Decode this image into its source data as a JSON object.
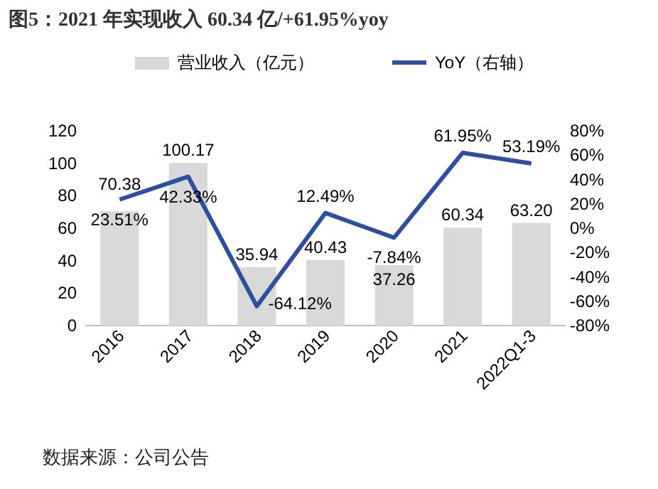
{
  "chart_data": {
    "type": "bar",
    "title": "图5：2021 年实现收入 60.34 亿/+61.95%yoy",
    "categories": [
      "2016",
      "2017",
      "2018",
      "2019",
      "2020",
      "2021",
      "2022Q1-3"
    ],
    "series": [
      {
        "name": "营业收入（亿元）",
        "color": "#d9d9d9",
        "values": [
          70.38,
          100.17,
          35.94,
          40.43,
          37.26,
          60.34,
          63.2
        ],
        "value_labels": [
          "70.38",
          "100.17",
          "35.94",
          "40.43",
          "37.26",
          "60.34",
          "63.20"
        ]
      },
      {
        "name": "YoY（右轴）",
        "type": "line",
        "axis": "y2",
        "color": "#2e4f9e",
        "values": [
          23.51,
          42.33,
          -64.12,
          12.49,
          -7.84,
          61.95,
          53.19
        ],
        "value_labels": [
          "23.51%",
          "42.33%",
          "-64.12%",
          "12.49%",
          "-7.84%",
          "61.95%",
          "53.19%"
        ]
      }
    ],
    "ylim": [
      0,
      120
    ],
    "yticks": [
      0,
      20,
      40,
      60,
      80,
      100,
      120
    ],
    "y2lim": [
      -80,
      80
    ],
    "y2ticks": [
      {
        "value": -80,
        "label": "-80%"
      },
      {
        "value": -60,
        "label": "-60%"
      },
      {
        "value": -40,
        "label": "-40%"
      },
      {
        "value": -20,
        "label": "-20%"
      },
      {
        "value": 0,
        "label": "0%"
      },
      {
        "value": 20,
        "label": "20%"
      },
      {
        "value": 40,
        "label": "40%"
      },
      {
        "value": 60,
        "label": "60%"
      },
      {
        "value": 80,
        "label": "80%"
      }
    ],
    "legend": "top",
    "annotations": [
      "数据来源：公司公告"
    ]
  }
}
